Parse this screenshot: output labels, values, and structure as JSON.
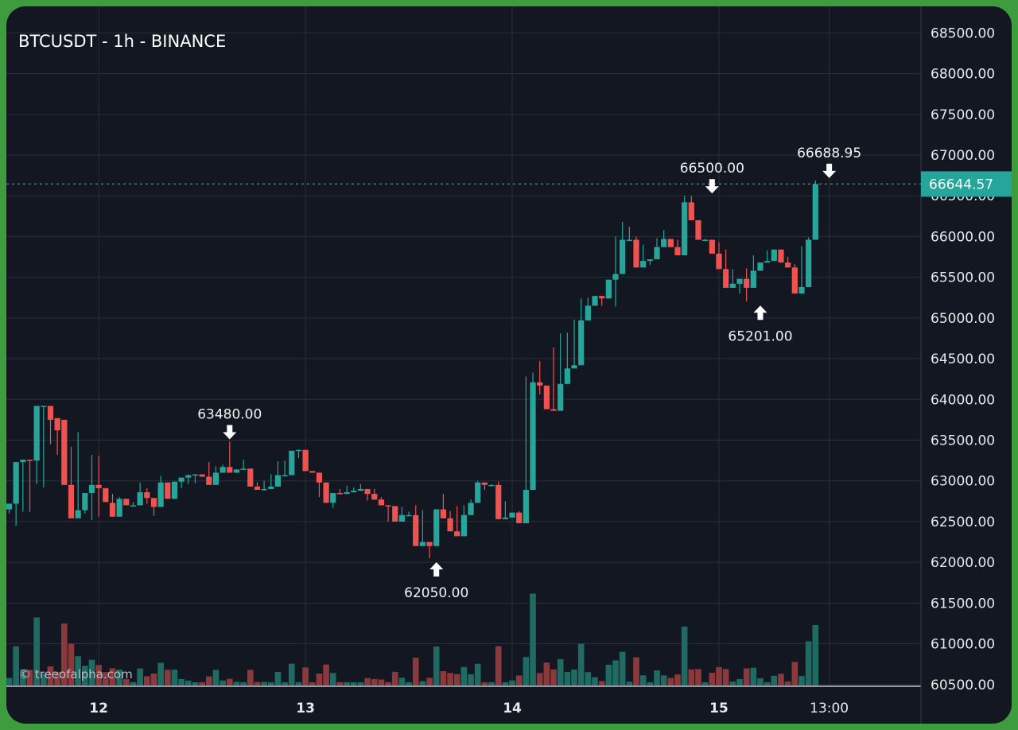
{
  "header": {
    "title": "BTCUSDT - 1h - BINANCE"
  },
  "watermark": "© treeofalpha.com",
  "current_price": {
    "label": "66644.57",
    "value": 66644.57
  },
  "colors": {
    "up": "#26a69a",
    "down": "#ef5350",
    "up_volume": "#1f6b63",
    "down_volume": "#8a3a3c",
    "background": "#131722",
    "frame": "#3e9b3e",
    "grid": "#2a2e39"
  },
  "chart_data": {
    "type": "candlestick",
    "title": "BTCUSDT - 1h - BINANCE",
    "ylim": [
      60400,
      68650
    ],
    "y_ticks": [
      "68500.00",
      "68000.00",
      "67500.00",
      "67000.00",
      "66500.00",
      "66000.00",
      "65500.00",
      "65000.00",
      "64500.00",
      "64000.00",
      "63500.00",
      "63000.00",
      "62500.00",
      "62000.00",
      "61500.00",
      "61000.00",
      "60500.00"
    ],
    "x_ticks": [
      {
        "label": "12",
        "index": 13,
        "bold": true
      },
      {
        "label": "13",
        "index": 43,
        "bold": true
      },
      {
        "label": "14",
        "index": 73,
        "bold": true
      },
      {
        "label": "15",
        "index": 103,
        "bold": true
      },
      {
        "label": "13:00",
        "index": 119,
        "bold": false
      }
    ],
    "grid": true,
    "annotations": [
      {
        "label": "63480.00",
        "index": 32,
        "value": 63480,
        "dir": "down"
      },
      {
        "label": "62050.00",
        "index": 62,
        "value": 62050,
        "dir": "up"
      },
      {
        "label": "66500.00",
        "index": 102,
        "value": 66500,
        "dir": "down"
      },
      {
        "label": "65201.00",
        "index": 109,
        "value": 65201,
        "dir": "up"
      },
      {
        "label": "66688.95",
        "index": 119,
        "value": 66688.95,
        "dir": "down"
      }
    ],
    "series": [
      {
        "type": "ohlc",
        "points": [
          [
            62650,
            62720,
            62600,
            62720
          ],
          [
            62720,
            62450,
            62650,
            63230
          ],
          [
            63230,
            63220,
            62620,
            63260
          ],
          [
            63260,
            63250,
            62620,
            63250
          ],
          [
            63250,
            62960,
            63920,
            63920
          ],
          [
            63920,
            63420,
            62920,
            63920
          ],
          [
            63920,
            63450,
            63770,
            63750
          ],
          [
            63770,
            63320,
            63470,
            63620
          ],
          [
            63750,
            63300,
            63630,
            62950
          ],
          [
            62950,
            63420,
            62830,
            62540
          ],
          [
            62540,
            63600,
            62650,
            62640
          ],
          [
            62640,
            62830,
            62600,
            62850
          ],
          [
            62850,
            63320,
            62520,
            62950
          ],
          [
            62950,
            63310,
            62560,
            62910
          ],
          [
            62910,
            62740,
            62820,
            62740
          ],
          [
            62730,
            62840,
            62600,
            62560
          ],
          [
            62560,
            62800,
            62760,
            62780
          ],
          [
            62780,
            62780,
            62740,
            62700
          ],
          [
            62700,
            62740,
            62710,
            62700
          ],
          [
            62700,
            62980,
            62720,
            62860
          ],
          [
            62860,
            62910,
            62720,
            62790
          ],
          [
            62790,
            62760,
            62570,
            62680
          ],
          [
            62680,
            63060,
            62960,
            62980
          ],
          [
            62980,
            62890,
            62800,
            62780
          ],
          [
            62780,
            62860,
            62930,
            62990
          ],
          [
            62990,
            62910,
            63040,
            63040
          ],
          [
            63040,
            63080,
            62960,
            63070
          ],
          [
            63070,
            63070,
            62970,
            63080
          ],
          [
            63080,
            63060,
            63080,
            63050
          ],
          [
            63050,
            63130,
            63230,
            62950
          ],
          [
            62950,
            63180,
            62950,
            63100
          ],
          [
            63100,
            63190,
            63200,
            63170
          ],
          [
            63170,
            63480,
            63400,
            63100
          ],
          [
            63100,
            63100,
            63140,
            63140
          ],
          [
            63140,
            63260,
            63150,
            63150
          ],
          [
            63150,
            63040,
            63010,
            62930
          ],
          [
            62930,
            62980,
            62950,
            62890
          ],
          [
            62890,
            63000,
            62880,
            62900
          ],
          [
            62900,
            63070,
            63080,
            62930
          ],
          [
            62930,
            63070,
            63240,
            63070
          ],
          [
            63070,
            63250,
            63120,
            63070
          ],
          [
            63070,
            63350,
            63290,
            63370
          ],
          [
            63370,
            63280,
            63300,
            63380
          ],
          [
            63380,
            63220,
            63200,
            63120
          ],
          [
            63120,
            63120,
            63120,
            63100
          ],
          [
            63100,
            62960,
            62800,
            62980
          ],
          [
            62980,
            62930,
            62760,
            62730
          ],
          [
            62730,
            62850,
            62670,
            62850
          ],
          [
            62850,
            62900,
            62860,
            62840
          ],
          [
            62840,
            62940,
            62860,
            62860
          ],
          [
            62860,
            62890,
            62920,
            62880
          ],
          [
            62880,
            62900,
            62960,
            62900
          ],
          [
            62900,
            62900,
            62760,
            62840
          ],
          [
            62840,
            62830,
            62900,
            62770
          ],
          [
            62770,
            62800,
            62750,
            62700
          ],
          [
            62700,
            62500,
            62530,
            62690
          ],
          [
            62690,
            62570,
            62600,
            62500
          ],
          [
            62500,
            62580,
            62680,
            62580
          ],
          [
            62580,
            62580,
            62620,
            62580
          ],
          [
            62580,
            62700,
            62610,
            62200
          ],
          [
            62200,
            62600,
            62640,
            62250
          ],
          [
            62250,
            62050,
            62230,
            62200
          ],
          [
            62200,
            62560,
            62200,
            62650
          ],
          [
            62650,
            62550,
            62840,
            62540
          ],
          [
            62540,
            62630,
            62560,
            62380
          ],
          [
            62380,
            62380,
            62690,
            62320
          ],
          [
            62320,
            62660,
            62700,
            62580
          ],
          [
            62580,
            62730,
            62770,
            62730
          ],
          [
            62730,
            63000,
            62800,
            62980
          ],
          [
            62980,
            62900,
            62890,
            62950
          ],
          [
            62950,
            62960,
            62960,
            62950
          ],
          [
            62950,
            62990,
            62530,
            62530
          ],
          [
            62530,
            62690,
            62750,
            62550
          ],
          [
            62550,
            62560,
            62600,
            62610
          ],
          [
            62610,
            62630,
            62580,
            62480
          ],
          [
            62480,
            64250,
            64280,
            62890
          ],
          [
            62890,
            64220,
            64330,
            64210
          ],
          [
            64210,
            64060,
            64470,
            64170
          ],
          [
            64170,
            64020,
            64160,
            63880
          ],
          [
            63880,
            64640,
            64020,
            63860
          ],
          [
            63860,
            64810,
            64640,
            64190
          ],
          [
            64190,
            64820,
            64790,
            64380
          ],
          [
            64380,
            64420,
            64980,
            64420
          ],
          [
            64420,
            65050,
            65240,
            64970
          ],
          [
            64970,
            65200,
            65250,
            65150
          ],
          [
            65150,
            65250,
            65260,
            65270
          ],
          [
            65270,
            65250,
            65150,
            65240
          ],
          [
            65240,
            65470,
            65250,
            65470
          ],
          [
            65470,
            66000,
            65140,
            65540
          ],
          [
            65540,
            66180,
            65960,
            65960
          ],
          [
            65960,
            66120,
            65960,
            65960
          ],
          [
            65960,
            66000,
            65780,
            65620
          ],
          [
            65620,
            65900,
            65700,
            65700
          ],
          [
            65700,
            65650,
            65650,
            65720
          ],
          [
            65720,
            65980,
            65770,
            65870
          ],
          [
            65870,
            66080,
            65940,
            65970
          ],
          [
            65970,
            65950,
            65920,
            65870
          ],
          [
            65870,
            65960,
            65780,
            65770
          ],
          [
            65770,
            66500,
            65870,
            66420
          ],
          [
            66420,
            66500,
            66450,
            66200
          ],
          [
            66200,
            66080,
            66070,
            65960
          ],
          [
            65960,
            65960,
            65970,
            65960
          ],
          [
            65960,
            65900,
            65950,
            65790
          ],
          [
            65790,
            65700,
            65930,
            65600
          ],
          [
            65600,
            65840,
            65800,
            65370
          ],
          [
            65370,
            65600,
            65580,
            65420
          ],
          [
            65420,
            65400,
            65300,
            65480
          ],
          [
            65480,
            65201,
            65610,
            65370
          ],
          [
            65370,
            65770,
            65620,
            65580
          ],
          [
            65580,
            65680,
            65660,
            65680
          ],
          [
            65680,
            65830,
            65830,
            65700
          ],
          [
            65700,
            65800,
            65810,
            65840
          ],
          [
            65840,
            65800,
            65760,
            65680
          ],
          [
            65680,
            65750,
            65750,
            65620
          ],
          [
            65620,
            65660,
            65580,
            65300
          ],
          [
            65300,
            65880,
            65710,
            65380
          ],
          [
            65380,
            65990,
            65780,
            65960
          ],
          [
            65960,
            66688.95,
            66090,
            66644.57
          ]
        ]
      }
    ]
  }
}
